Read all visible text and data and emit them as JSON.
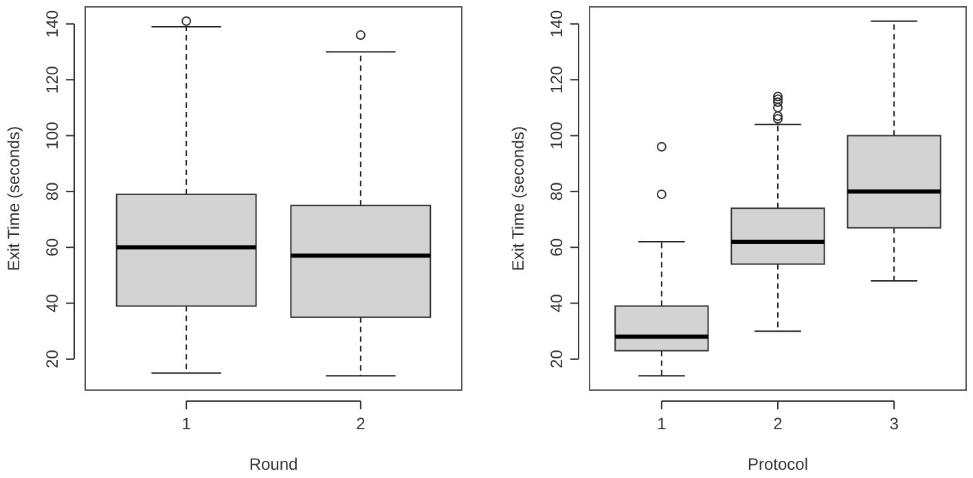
{
  "chart_data": [
    {
      "type": "box",
      "xlabel": "Round",
      "ylabel": "Exit Time (seconds)",
      "categories": [
        "1",
        "2"
      ],
      "ylim": [
        8.9,
        146.1
      ],
      "yticks": [
        20,
        40,
        60,
        80,
        100,
        120,
        140
      ],
      "color": "#d3d3d3",
      "boxes": [
        {
          "low": 15,
          "q1": 39,
          "median": 60,
          "q3": 79,
          "high": 139,
          "outliers": [
            141
          ]
        },
        {
          "low": 14,
          "q1": 35,
          "median": 57,
          "q3": 75,
          "high": 130,
          "outliers": [
            136
          ]
        }
      ]
    },
    {
      "type": "box",
      "xlabel": "Protocol",
      "ylabel": "Exit Time (seconds)",
      "categories": [
        "1",
        "2",
        "3"
      ],
      "ylim": [
        8.9,
        146.1
      ],
      "yticks": [
        20,
        40,
        60,
        80,
        100,
        120,
        140
      ],
      "color": "#d3d3d3",
      "boxes": [
        {
          "low": 14,
          "q1": 23,
          "median": 28,
          "q3": 39,
          "high": 62,
          "outliers": [
            79,
            96
          ]
        },
        {
          "low": 30,
          "q1": 54,
          "median": 62,
          "q3": 74,
          "high": 104,
          "outliers": [
            106,
            107,
            110,
            112,
            113,
            114
          ]
        },
        {
          "low": 48,
          "q1": 67,
          "median": 80,
          "q3": 100,
          "high": 141
        }
      ]
    }
  ]
}
